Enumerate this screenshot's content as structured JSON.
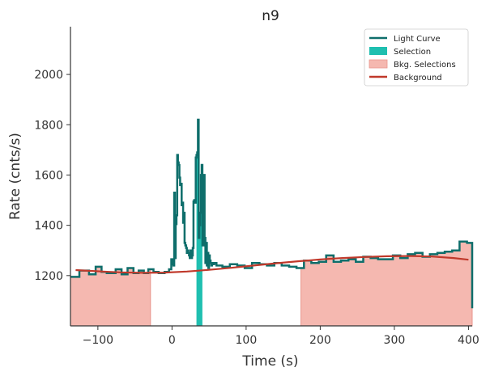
{
  "chart_data": {
    "type": "line",
    "title": "n9",
    "xlabel": "Time (s)",
    "ylabel": "Rate (cnts/s)",
    "xlim": [
      -137,
      405
    ],
    "ylim": [
      1000,
      2190
    ],
    "xticks": [
      -100,
      0,
      100,
      200,
      300,
      400
    ],
    "xtick_labels": [
      "−100",
      "0",
      "100",
      "200",
      "300",
      "400"
    ],
    "yticks": [
      1200,
      1400,
      1600,
      1800,
      2000
    ],
    "ytick_labels": [
      "1200",
      "1400",
      "1600",
      "1800",
      "2000"
    ],
    "grid": false,
    "legend_position": "top-right",
    "legend": [
      {
        "label": "Light Curve",
        "kind": "line"
      },
      {
        "label": "Selection",
        "kind": "patch"
      },
      {
        "label": "Bkg. Selections",
        "kind": "patch"
      },
      {
        "label": "Background",
        "kind": "line"
      }
    ],
    "colors": {
      "light_curve": "#0e6e6b",
      "selection": "#1fbfb0",
      "bkg_fill": "#f5b8b0",
      "bkg_edge": "#e8958c",
      "background": "#c0392b",
      "axis": "#333333"
    },
    "series": [
      {
        "name": "Light Curve",
        "style": "step",
        "x": [
          -137,
          -125,
          -112,
          -103,
          -95,
          -88,
          -76,
          -68,
          -60,
          -52,
          -45,
          -38,
          -32,
          -25,
          -18,
          -10,
          -4,
          -1,
          1,
          2,
          3,
          4,
          5,
          6,
          7,
          8,
          9,
          10,
          11,
          12,
          13,
          14,
          15,
          16,
          17,
          18,
          19,
          20,
          21,
          22,
          23,
          24,
          25,
          26,
          27,
          28,
          29,
          30,
          31,
          32,
          33,
          34,
          35,
          36,
          37,
          38,
          39,
          40,
          41,
          42,
          43,
          44,
          45,
          46,
          47,
          48,
          49,
          50,
          51,
          52,
          53,
          54,
          55,
          57,
          60,
          68,
          78,
          88,
          98,
          108,
          118,
          128,
          138,
          148,
          158,
          168,
          178,
          188,
          198,
          208,
          218,
          228,
          238,
          248,
          258,
          268,
          278,
          288,
          298,
          308,
          318,
          328,
          338,
          348,
          358,
          368,
          378,
          388,
          398,
          405
        ],
        "y": [
          1195,
          1220,
          1205,
          1235,
          1215,
          1210,
          1225,
          1205,
          1230,
          1210,
          1220,
          1210,
          1225,
          1215,
          1210,
          1215,
          1225,
          1265,
          1245,
          1240,
          1530,
          1270,
          1405,
          1440,
          1680,
          1650,
          1640,
          1590,
          1560,
          1565,
          1480,
          1490,
          1410,
          1450,
          1330,
          1320,
          1310,
          1290,
          1300,
          1290,
          1280,
          1270,
          1300,
          1270,
          1280,
          1310,
          1495,
          1500,
          1490,
          1670,
          1680,
          1690,
          1820,
          1350,
          1400,
          1450,
          1600,
          1640,
          1320,
          1320,
          1600,
          1350,
          1250,
          1330,
          1240,
          1290,
          1230,
          1280,
          1260,
          1250,
          1240,
          1250,
          1245,
          1250,
          1240,
          1235,
          1245,
          1240,
          1230,
          1250,
          1245,
          1240,
          1250,
          1240,
          1235,
          1230,
          1260,
          1250,
          1255,
          1280,
          1255,
          1260,
          1265,
          1255,
          1275,
          1270,
          1265,
          1265,
          1280,
          1270,
          1285,
          1290,
          1275,
          1285,
          1290,
          1295,
          1300,
          1335,
          1330,
          1070
        ]
      },
      {
        "name": "Background",
        "style": "line",
        "x": [
          -130,
          -100,
          -70,
          -40,
          -10,
          20,
          50,
          80,
          110,
          140,
          170,
          200,
          230,
          260,
          290,
          320,
          350,
          380,
          400
        ],
        "y": [
          1222,
          1217,
          1213,
          1211,
          1212,
          1216,
          1223,
          1231,
          1240,
          1249,
          1257,
          1264,
          1270,
          1274,
          1277,
          1278,
          1276,
          1270,
          1263
        ]
      }
    ],
    "selection": {
      "label": "Selection",
      "range": [
        33,
        41
      ]
    },
    "bkg_selections": {
      "label": "Bkg. Selections",
      "ranges": [
        [
          -137,
          -29
        ],
        [
          174,
          405
        ]
      ]
    }
  }
}
